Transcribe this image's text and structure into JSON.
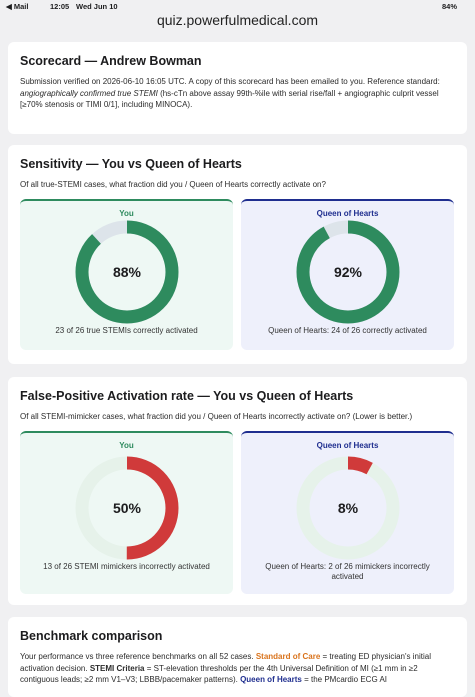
{
  "status_bar": {
    "back": "◀ Mail",
    "time": "12:05",
    "date": "Wed Jun 10",
    "battery": "84%"
  },
  "url": "quiz.powerfulmedical.com",
  "scorecard": {
    "title": "Scorecard — Andrew Bowman",
    "text": [
      "Submission verified on 2026-06-10 16:05 UTC. A copy of this scorecard has been emailed to you. Reference standard: ",
      "angiographically confirmed true STEMI",
      " (hs-cTn above assay 99th-%ile with serial rise/fall + angiographic culprit vessel [≥70% stenosis or TIMI 0/1], including MINOCA)."
    ]
  },
  "sensitivity": {
    "title": "Sensitivity — You vs Queen of Hearts",
    "question": "Of all true-STEMI cases, what fraction did you / Queen of Hearts correctly activate on?",
    "panels": [
      {
        "label": "You",
        "value": 88,
        "value_label": "88%",
        "caption": "23 of 26 true STEMIs correctly activated"
      },
      {
        "label": "Queen of Hearts",
        "value": 92,
        "value_label": "92%",
        "caption": "Queen of Hearts: 24 of 26 correctly activated"
      }
    ]
  },
  "false_positive": {
    "title": "False-Positive Activation rate — You vs Queen of Hearts",
    "question": "Of all STEMI-mimicker cases, what fraction did you / Queen of Hearts incorrectly activate on? (Lower is better.)",
    "panels": [
      {
        "label": "You",
        "value": 50,
        "value_label": "50%",
        "caption": "13 of 26 STEMI mimickers incorrectly activated"
      },
      {
        "label": "Queen of Hearts",
        "value": 8,
        "value_label": "8%",
        "caption": "Queen of Hearts: 2 of 26 mimickers incorrectly activated"
      }
    ]
  },
  "benchmark": {
    "title": "Benchmark comparison",
    "text": [
      "Your performance vs three reference benchmarks on all 52 cases. ",
      "Standard of Care",
      " = treating ED physician's initial activation decision. ",
      "STEMI Criteria",
      " = ST-elevation thresholds per the 4th Universal Definition of MI (≥1 mm in ≥2 contiguous leads; ≥2 mm V1–V3; LBBB/pacemaker patterns). ",
      "Queen of Hearts",
      " = the PMcardio ECG AI"
    ]
  }
}
